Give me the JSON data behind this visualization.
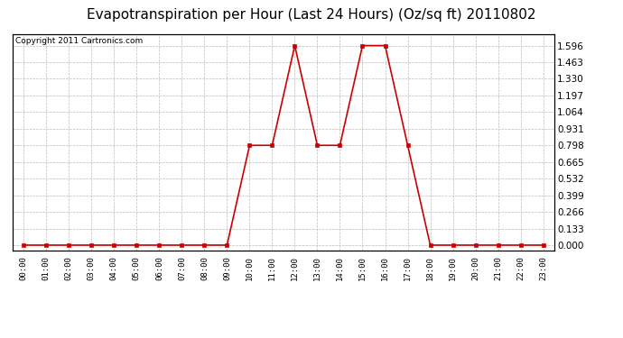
{
  "title": "Evapotranspiration per Hour (Last 24 Hours) (Oz/sq ft) 20110802",
  "copyright": "Copyright 2011 Cartronics.com",
  "x_labels": [
    "00:00",
    "01:00",
    "02:00",
    "03:00",
    "04:00",
    "05:00",
    "06:00",
    "07:00",
    "08:00",
    "09:00",
    "10:00",
    "11:00",
    "12:00",
    "13:00",
    "14:00",
    "15:00",
    "16:00",
    "17:00",
    "18:00",
    "19:00",
    "20:00",
    "21:00",
    "22:00",
    "23:00"
  ],
  "y_values": [
    0.0,
    0.0,
    0.0,
    0.0,
    0.0,
    0.0,
    0.0,
    0.0,
    0.0,
    0.0,
    0.798,
    0.798,
    1.596,
    0.798,
    0.798,
    1.596,
    1.596,
    0.798,
    0.0,
    0.0,
    0.0,
    0.0,
    0.0,
    0.0
  ],
  "yticks": [
    0.0,
    0.133,
    0.266,
    0.399,
    0.532,
    0.665,
    0.798,
    0.931,
    1.064,
    1.197,
    1.33,
    1.463,
    1.596
  ],
  "line_color": "#cc0000",
  "marker_color": "#cc0000",
  "bg_color": "#ffffff",
  "plot_bg_color": "#ffffff",
  "grid_color": "#bbbbbb",
  "title_fontsize": 11,
  "copyright_fontsize": 6.5,
  "tick_fontsize": 6.5,
  "ytick_fontsize": 7.5,
  "ylim": [
    -0.04,
    1.69
  ],
  "line_width": 1.2,
  "marker_size": 2.5
}
